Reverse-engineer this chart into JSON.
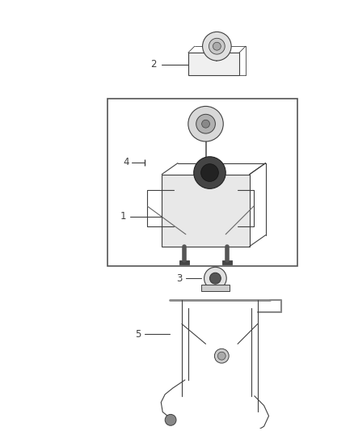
{
  "bg_color": "#ffffff",
  "line_color": "#404040",
  "label_color": "#404040",
  "fig_width": 4.38,
  "fig_height": 5.33,
  "dpi": 100,
  "font_size": 8.5,
  "lw": 0.8
}
